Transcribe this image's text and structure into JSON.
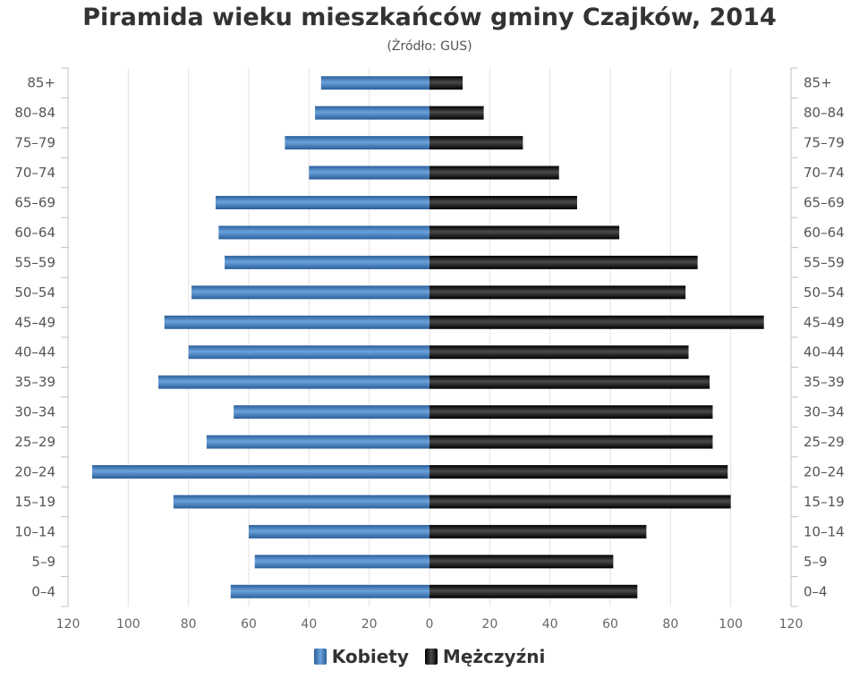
{
  "chart_data": {
    "type": "bar",
    "title": "Piramida wieku mieszkańców gminy Czajków, 2014",
    "subtitle": "(Źródło: GUS)",
    "categories": [
      "0–4",
      "5–9",
      "10–14",
      "15–19",
      "20–24",
      "25–29",
      "30–34",
      "35–39",
      "40–44",
      "45–49",
      "50–54",
      "55–59",
      "60–64",
      "65–69",
      "70–74",
      "75–79",
      "80–84",
      "85+"
    ],
    "series": [
      {
        "name": "Kobiety",
        "color": "#3d78b8",
        "values": [
          66,
          58,
          60,
          85,
          112,
          74,
          65,
          90,
          80,
          88,
          79,
          68,
          70,
          71,
          40,
          48,
          38,
          36
        ]
      },
      {
        "name": "Mężczyźni",
        "color": "#1a1a1a",
        "values": [
          69,
          61,
          72,
          100,
          99,
          94,
          94,
          93,
          86,
          111,
          85,
          89,
          63,
          49,
          43,
          31,
          18,
          11
        ]
      }
    ],
    "xlim": [
      -120,
      120
    ],
    "xticks": [
      120,
      100,
      80,
      60,
      40,
      20,
      0,
      20,
      40,
      60,
      80,
      100,
      120
    ],
    "grid": true,
    "legend_position": "bottom-center"
  }
}
